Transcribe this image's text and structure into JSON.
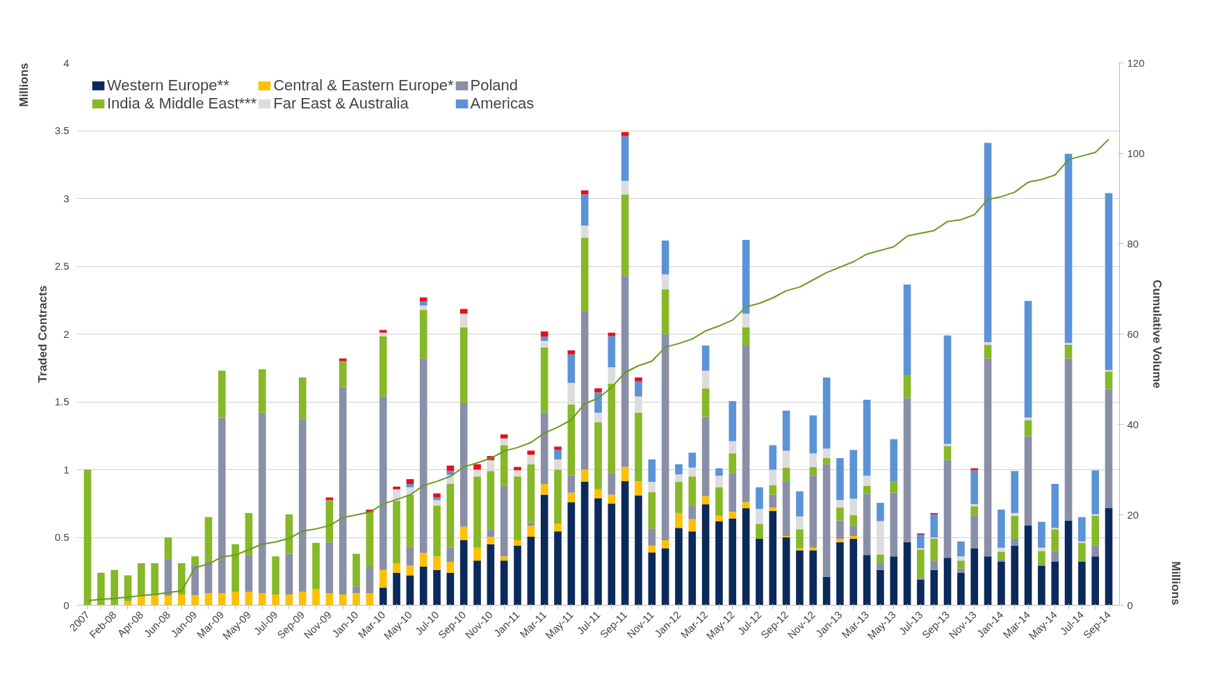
{
  "chart_data": {
    "type": "bar",
    "stacked": true,
    "ylabel": "Traded Contracts",
    "y2label": "Cumulative Volume",
    "annotations": [
      "Millions",
      "Millions"
    ],
    "categories": [
      "2007",
      null,
      "Feb-08",
      null,
      "Apr-08",
      null,
      "Jun-08",
      null,
      "Jan-09",
      null,
      "Mar-09",
      null,
      "May-09",
      null,
      "Jul-09",
      null,
      "Sep-09",
      null,
      "Nov-09",
      null,
      "Jan-10",
      null,
      "Mar-10",
      null,
      "May-10",
      null,
      "Jul-10",
      null,
      "Sep-10",
      null,
      "Nov-10",
      null,
      "Jan-11",
      null,
      "Mar-11",
      null,
      "May-11",
      null,
      "Jul-11",
      null,
      "Sep-11",
      null,
      "Nov-11",
      null,
      "Jan-12",
      null,
      "Mar-12",
      null,
      "May-12",
      null,
      "Jul-12",
      null,
      "Sep-12",
      null,
      "Nov-12",
      null,
      "Jan-13",
      null,
      "Mar-13",
      null,
      "May-13",
      null,
      "Jul-13",
      null,
      "Sep-13",
      null,
      "Nov-13",
      null,
      "Jan-14",
      null,
      "Mar-14",
      null,
      "May-14",
      null,
      "Jul-14",
      null,
      "Sep-14"
    ],
    "series": [
      {
        "name": "Western Europe**",
        "color": "#0b2a5b",
        "values": [
          0,
          0,
          0,
          0,
          0,
          0,
          0,
          0,
          0,
          0,
          0,
          0,
          0,
          0,
          0,
          0,
          0,
          0,
          0,
          0,
          0,
          0,
          0.13,
          0.24,
          0.22,
          0.285,
          0.26,
          0.24,
          0.48,
          0.33,
          0.45,
          0.33,
          0.44,
          0.505,
          0.815,
          0.545,
          0.76,
          0.91,
          0.79,
          0.75,
          0.915,
          0.81,
          0.39,
          0.42,
          0.57,
          0.545,
          0.745,
          0.62,
          0.64,
          0.715,
          0.49,
          0.695,
          0.5,
          0.405,
          0.405,
          0.21,
          0.465,
          0.49,
          0.37,
          0.26,
          0.36,
          0.465,
          0.19,
          0.26,
          0.35,
          0.24,
          0.42,
          0.36,
          0.32,
          0.44,
          0.59,
          0.29,
          0.32,
          0.625,
          0.32,
          0.36,
          0.715
        ]
      },
      {
        "name": "Central & Eastern Europe*",
        "color": "#ffc000",
        "values": [
          0,
          0,
          0,
          0.03,
          0.07,
          0.07,
          0.07,
          0.08,
          0.075,
          0.09,
          0.09,
          0.1,
          0.1,
          0.09,
          0.08,
          0.08,
          0.1,
          0.12,
          0.09,
          0.08,
          0.09,
          0.09,
          0.13,
          0.07,
          0.075,
          0.1,
          0.1,
          0.08,
          0.1,
          0.095,
          0.055,
          0.03,
          0.04,
          0.08,
          0.08,
          0.055,
          0.07,
          0.09,
          0.065,
          0.065,
          0.105,
          0.105,
          0.05,
          0.06,
          0.11,
          0.09,
          0.06,
          0.04,
          0.05,
          0.045,
          0,
          0.025,
          0.01,
          0.015,
          0.02,
          0,
          0.025,
          0.02,
          0,
          0,
          0,
          0,
          0,
          0,
          0,
          0,
          0,
          0,
          0,
          0,
          0,
          0,
          0,
          0,
          0,
          0,
          0
        ]
      },
      {
        "name": "Poland",
        "color": "#8a8fa8",
        "values": [
          0,
          0,
          0,
          0,
          0,
          0,
          0.27,
          0,
          0.215,
          0.23,
          1.295,
          0,
          0.27,
          1.33,
          0,
          0.3,
          1.27,
          0,
          0.375,
          1.53,
          0.05,
          0.195,
          1.28,
          0,
          0.135,
          1.435,
          0,
          0.105,
          0.91,
          0,
          0.055,
          0.52,
          0,
          0.025,
          0.525,
          0,
          0.13,
          1.17,
          0,
          0.16,
          1.41,
          0,
          0.125,
          1.52,
          0,
          0.1,
          0.585,
          0,
          0.285,
          1.155,
          0,
          0.095,
          0.405,
          0,
          0.53,
          0.83,
          0.135,
          0.08,
          0.45,
          0.055,
          0.47,
          1.065,
          0.015,
          0.07,
          0.72,
          0.03,
          0.24,
          1.46,
          0.02,
          0.05,
          0.655,
          0.01,
          0.08,
          1.195,
          0,
          0.08,
          0.88
        ]
      },
      {
        "name": "India & Middle East***",
        "color": "#86b827",
        "values": [
          1.0,
          0.24,
          0.26,
          0.19,
          0.24,
          0.24,
          0.16,
          0.23,
          0.07,
          0.33,
          0.345,
          0.35,
          0.31,
          0.32,
          0.28,
          0.29,
          0.31,
          0.34,
          0.31,
          0.19,
          0.24,
          0.4,
          0.445,
          0.46,
          0.385,
          0.36,
          0.375,
          0.47,
          0.56,
          0.525,
          0.43,
          0.3,
          0.47,
          0.43,
          0.48,
          0.4,
          0.52,
          0.54,
          0.495,
          0.66,
          0.6,
          0.505,
          0.27,
          0.33,
          0.23,
          0.215,
          0.21,
          0.21,
          0.145,
          0.135,
          0.11,
          0.07,
          0.1,
          0.14,
          0.065,
          0.045,
          0.095,
          0.075,
          0.06,
          0.06,
          0.085,
          0.17,
          0.205,
          0.16,
          0.105,
          0.06,
          0.07,
          0.1,
          0.055,
          0.17,
          0.12,
          0.1,
          0.16,
          0.1,
          0.14,
          0.22,
          0.13
        ]
      },
      {
        "name": "Far East & Australia",
        "color": "#dcdcdc",
        "values": [
          0,
          0,
          0,
          0,
          0,
          0,
          0,
          0,
          0,
          0,
          0,
          0,
          0,
          0,
          0,
          0,
          0,
          0,
          0,
          0,
          0,
          0,
          0.025,
          0.085,
          0.055,
          0.03,
          0.04,
          0.065,
          0.1,
          0.05,
          0.08,
          0.05,
          0.045,
          0.07,
          0.05,
          0.075,
          0.16,
          0.09,
          0.07,
          0.12,
          0.1,
          0.12,
          0.075,
          0.11,
          0.055,
          0.065,
          0.13,
          0.085,
          0.09,
          0.1,
          0.11,
          0.115,
          0.125,
          0.095,
          0.1,
          0.07,
          0.055,
          0.12,
          0.075,
          0.245,
          0,
          0,
          0.01,
          0.01,
          0.015,
          0.03,
          0.015,
          0.02,
          0.03,
          0.02,
          0.02,
          0.025,
          0.01,
          0.015,
          0.01,
          0.01,
          0.01
        ]
      },
      {
        "name": "Americas",
        "color": "#5b93d6",
        "values": [
          0,
          0,
          0,
          0,
          0,
          0,
          0,
          0,
          0,
          0,
          0,
          0,
          0,
          0,
          0,
          0,
          0,
          0,
          0,
          0,
          0,
          0,
          0,
          0,
          0.025,
          0.03,
          0.02,
          0.03,
          0,
          0,
          0,
          0,
          0,
          0,
          0.03,
          0.07,
          0.21,
          0.23,
          0.15,
          0.23,
          0.33,
          0.11,
          0.165,
          0.25,
          0.075,
          0.11,
          0.185,
          0.055,
          0.295,
          0.545,
          0.16,
          0.18,
          0.295,
          0.185,
          0.28,
          0.525,
          0.31,
          0.36,
          0.56,
          0.135,
          0.31,
          0.665,
          0.1,
          0.17,
          0.8,
          0.11,
          0.25,
          1.47,
          0.28,
          0.31,
          0.86,
          0.19,
          0.325,
          1.395,
          0.18,
          0.325,
          1.305
        ]
      },
      {
        "color": "#e3111b",
        "values": [
          0,
          0,
          0,
          0,
          0,
          0,
          0,
          0,
          0,
          0,
          0,
          0,
          0,
          0,
          0,
          0,
          0,
          0,
          0.02,
          0.02,
          0,
          0.02,
          0.02,
          0.02,
          0.035,
          0.03,
          0.03,
          0.04,
          0.035,
          0.04,
          0.03,
          0.03,
          0.025,
          0.03,
          0.04,
          0.025,
          0.03,
          0.03,
          0.03,
          0.025,
          0.03,
          0.03,
          0,
          0,
          0,
          0,
          0,
          0,
          0,
          0,
          0,
          0,
          0,
          0,
          0,
          0,
          0,
          0,
          0,
          0,
          0,
          0,
          0.01,
          0.01,
          0,
          0,
          0.015,
          0,
          0,
          0,
          0,
          0,
          0,
          0,
          0,
          0,
          0
        ]
      },
      {
        "type": "line",
        "axis": "y2",
        "color": "#6a9a1f",
        "values": [
          1.0,
          1.3,
          1.5,
          1.8,
          2.1,
          2.4,
          2.8,
          3.2,
          8.3,
          9.1,
          10.7,
          11.1,
          12.3,
          13.5,
          14,
          14.8,
          16.4,
          16.9,
          17.6,
          19.4,
          20,
          20.6,
          22.4,
          23.4,
          24.4,
          26.5,
          27.4,
          28.5,
          30.6,
          31.5,
          32.5,
          34.1,
          34.9,
          36,
          38.1,
          39.4,
          41,
          44.6,
          45.8,
          48.2,
          51.5,
          53,
          54,
          57.1,
          57.9,
          58.9,
          60.7,
          61.8,
          63.1,
          66,
          66.8,
          68,
          69.6,
          70.4,
          72,
          73.6,
          74.8,
          76,
          77.7,
          78.5,
          79.3,
          81.7,
          82.3,
          82.9,
          84.9,
          85.3,
          86.4,
          89.8,
          90.4,
          91.4,
          93.6,
          94.2,
          95.2,
          98.6,
          99.4,
          100.2,
          103.1
        ]
      }
    ],
    "ylim": [
      0,
      4
    ],
    "yticks": [
      0,
      0.5,
      1,
      1.5,
      2,
      2.5,
      3,
      3.5,
      4
    ],
    "y2lim": [
      0,
      120
    ],
    "y2ticks": [
      0,
      20,
      40,
      60,
      80,
      100,
      120
    ],
    "grid": "y",
    "legend": "top left"
  }
}
